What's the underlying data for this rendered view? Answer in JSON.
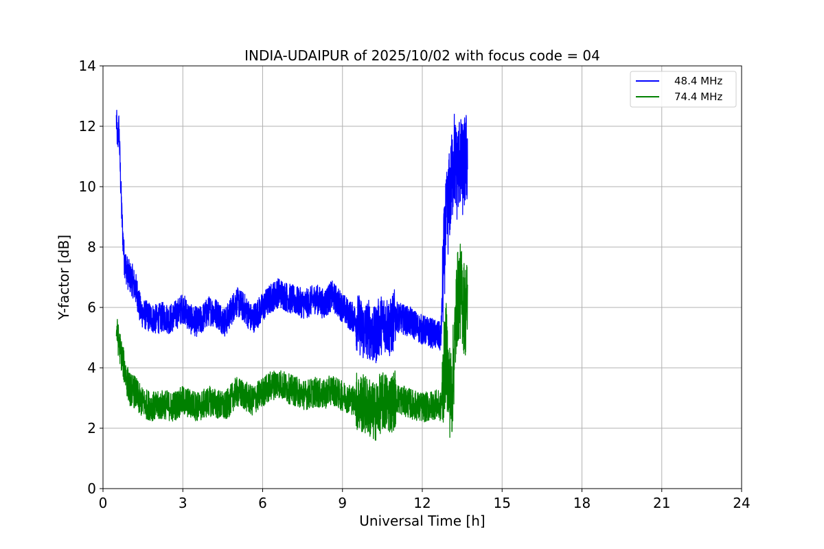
{
  "chart_data": {
    "type": "line",
    "title": "INDIA-UDAIPUR of 2025/10/02 with focus code = 04",
    "xlabel": "Universal Time [h]",
    "ylabel": "Y-factor [dB]",
    "xlim": [
      0,
      24
    ],
    "ylim": [
      0,
      14
    ],
    "xticks": [
      0,
      3,
      6,
      9,
      12,
      15,
      18,
      21,
      24
    ],
    "yticks": [
      0,
      2,
      4,
      6,
      8,
      10,
      12,
      14
    ],
    "grid": true,
    "legend_position": "top-right",
    "series": [
      {
        "name": "48.4 MHz",
        "color": "#0000ff",
        "points": [
          [
            0.5,
            12.2
          ],
          [
            0.55,
            11.5
          ],
          [
            0.6,
            12.0
          ],
          [
            0.65,
            10.5
          ],
          [
            0.7,
            9.2
          ],
          [
            0.75,
            8.3
          ],
          [
            0.8,
            7.6
          ],
          [
            0.9,
            7.2
          ],
          [
            1.0,
            7.0
          ],
          [
            1.1,
            6.9
          ],
          [
            1.2,
            6.7
          ],
          [
            1.3,
            6.4
          ],
          [
            1.4,
            5.9
          ],
          [
            1.5,
            5.8
          ],
          [
            1.7,
            5.7
          ],
          [
            2.0,
            5.6
          ],
          [
            2.3,
            5.7
          ],
          [
            2.5,
            5.6
          ],
          [
            2.8,
            5.8
          ],
          [
            3.0,
            6.0
          ],
          [
            3.3,
            5.6
          ],
          [
            3.6,
            5.5
          ],
          [
            4.0,
            5.9
          ],
          [
            4.3,
            5.8
          ],
          [
            4.6,
            5.5
          ],
          [
            5.0,
            6.2
          ],
          [
            5.3,
            6.0
          ],
          [
            5.6,
            5.6
          ],
          [
            6.0,
            6.0
          ],
          [
            6.3,
            6.3
          ],
          [
            6.6,
            6.5
          ],
          [
            7.0,
            6.3
          ],
          [
            7.3,
            6.2
          ],
          [
            7.6,
            6.1
          ],
          [
            8.0,
            6.3
          ],
          [
            8.3,
            6.1
          ],
          [
            8.6,
            6.4
          ],
          [
            8.9,
            6.1
          ],
          [
            9.2,
            5.8
          ],
          [
            9.5,
            5.6
          ],
          [
            9.8,
            5.2
          ],
          [
            10.0,
            5.3
          ],
          [
            10.2,
            5.0
          ],
          [
            10.4,
            5.4
          ],
          [
            10.6,
            5.5
          ],
          [
            10.8,
            5.3
          ],
          [
            11.0,
            5.7
          ],
          [
            11.3,
            5.6
          ],
          [
            11.6,
            5.5
          ],
          [
            11.9,
            5.3
          ],
          [
            12.2,
            5.2
          ],
          [
            12.5,
            5.1
          ],
          [
            12.7,
            5.0
          ],
          [
            12.8,
            7.5
          ],
          [
            12.9,
            8.8
          ],
          [
            13.0,
            9.5
          ],
          [
            13.1,
            10.2
          ],
          [
            13.2,
            11.0
          ],
          [
            13.3,
            10.4
          ],
          [
            13.4,
            10.9
          ],
          [
            13.5,
            10.5
          ],
          [
            13.6,
            10.8
          ],
          [
            13.7,
            11.0
          ]
        ]
      },
      {
        "name": "74.4 MHz",
        "color": "#008000",
        "points": [
          [
            0.5,
            5.3
          ],
          [
            0.6,
            4.8
          ],
          [
            0.7,
            4.4
          ],
          [
            0.8,
            4.0
          ],
          [
            0.9,
            3.6
          ],
          [
            1.0,
            3.3
          ],
          [
            1.2,
            3.2
          ],
          [
            1.4,
            2.9
          ],
          [
            1.6,
            2.8
          ],
          [
            2.0,
            2.7
          ],
          [
            2.3,
            2.8
          ],
          [
            2.6,
            2.7
          ],
          [
            3.0,
            2.9
          ],
          [
            3.3,
            2.8
          ],
          [
            3.6,
            2.7
          ],
          [
            4.0,
            2.9
          ],
          [
            4.3,
            2.8
          ],
          [
            4.6,
            2.7
          ],
          [
            5.0,
            3.2
          ],
          [
            5.3,
            3.1
          ],
          [
            5.6,
            2.9
          ],
          [
            6.0,
            3.2
          ],
          [
            6.3,
            3.4
          ],
          [
            6.6,
            3.5
          ],
          [
            7.0,
            3.3
          ],
          [
            7.3,
            3.2
          ],
          [
            7.6,
            3.1
          ],
          [
            8.0,
            3.2
          ],
          [
            8.3,
            3.1
          ],
          [
            8.6,
            3.3
          ],
          [
            8.9,
            3.1
          ],
          [
            9.2,
            3.0
          ],
          [
            9.5,
            2.9
          ],
          [
            9.8,
            2.8
          ],
          [
            10.0,
            2.7
          ],
          [
            10.2,
            2.5
          ],
          [
            10.4,
            2.8
          ],
          [
            10.6,
            2.9
          ],
          [
            10.8,
            2.8
          ],
          [
            11.0,
            3.0
          ],
          [
            11.3,
            2.9
          ],
          [
            11.6,
            2.8
          ],
          [
            11.9,
            2.7
          ],
          [
            12.2,
            2.7
          ],
          [
            12.5,
            2.8
          ],
          [
            12.7,
            2.7
          ],
          [
            12.8,
            3.8
          ],
          [
            12.9,
            4.6
          ],
          [
            13.0,
            3.4
          ],
          [
            13.1,
            3.0
          ],
          [
            13.2,
            4.5
          ],
          [
            13.3,
            6.2
          ],
          [
            13.4,
            6.6
          ],
          [
            13.5,
            6.3
          ],
          [
            13.6,
            5.9
          ],
          [
            13.7,
            6.1
          ]
        ]
      }
    ]
  }
}
